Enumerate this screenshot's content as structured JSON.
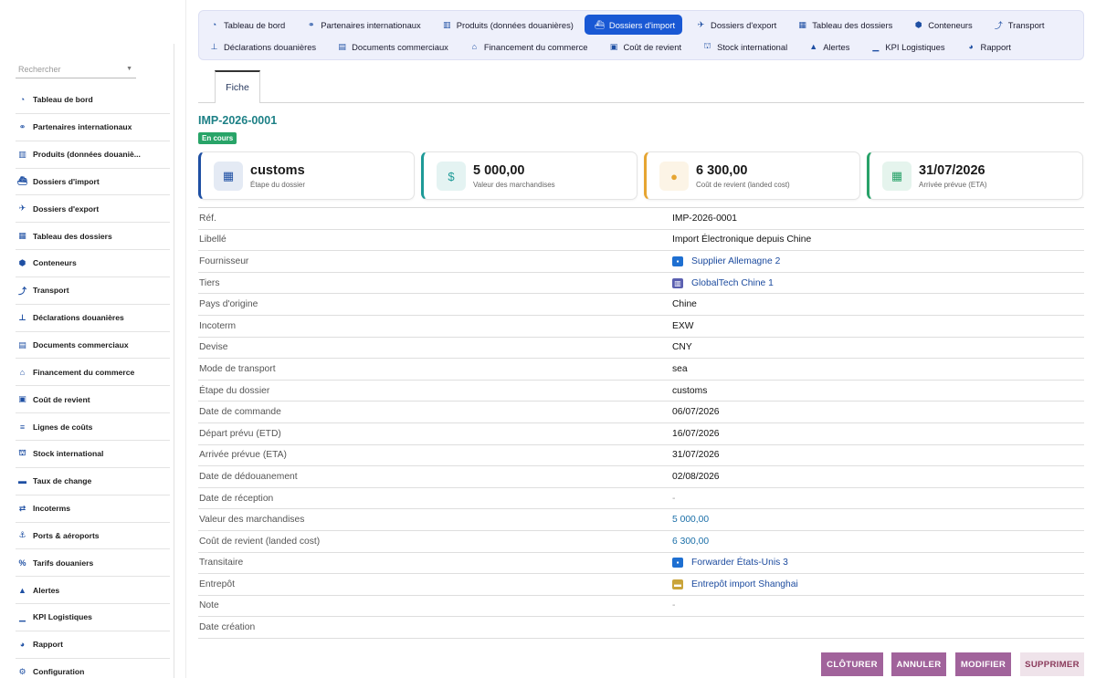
{
  "sidebar": {
    "search_placeholder": "Rechercher",
    "items": [
      {
        "label": "Tableau de bord",
        "icon": "dashboard-icon"
      },
      {
        "label": "Partenaires internationaux",
        "icon": "handshake-icon"
      },
      {
        "label": "Produits (données douaniè...",
        "icon": "barcode-icon"
      },
      {
        "label": "Dossiers d'import",
        "icon": "ship-icon"
      },
      {
        "label": "Dossiers d'export",
        "icon": "plane-icon"
      },
      {
        "label": "Tableau des dossiers",
        "icon": "table-icon"
      },
      {
        "label": "Conteneurs",
        "icon": "box-icon"
      },
      {
        "label": "Transport",
        "icon": "route-icon"
      },
      {
        "label": "Déclarations douanières",
        "icon": "stamp-icon"
      },
      {
        "label": "Documents commerciaux",
        "icon": "document-icon"
      },
      {
        "label": "Financement du commerce",
        "icon": "bank-icon"
      },
      {
        "label": "Coût de revient",
        "icon": "calculator-icon"
      },
      {
        "label": "Lignes de coûts",
        "icon": "list-icon"
      },
      {
        "label": "Stock international",
        "icon": "warehouse-icon"
      },
      {
        "label": "Taux de change",
        "icon": "money-icon"
      },
      {
        "label": "Incoterms",
        "icon": "exchange-icon"
      },
      {
        "label": "Ports & aéroports",
        "icon": "anchor-icon"
      },
      {
        "label": "Tarifs douaniers",
        "icon": "percent-icon"
      },
      {
        "label": "Alertes",
        "icon": "warning-icon"
      },
      {
        "label": "KPI Logistiques",
        "icon": "chart-icon"
      },
      {
        "label": "Rapport",
        "icon": "pie-chart-icon"
      },
      {
        "label": "Configuration",
        "icon": "gear-icon"
      }
    ]
  },
  "topnav": {
    "row1": [
      {
        "label": "Tableau de bord",
        "icon": "dashboard-icon",
        "active": false
      },
      {
        "label": "Partenaires internationaux",
        "icon": "handshake-icon",
        "active": false
      },
      {
        "label": "Produits (données douanières)",
        "icon": "barcode-icon",
        "active": false
      },
      {
        "label": "Dossiers d'import",
        "icon": "ship-icon",
        "active": true
      },
      {
        "label": "Dossiers d'export",
        "icon": "plane-icon",
        "active": false
      },
      {
        "label": "Tableau des dossiers",
        "icon": "table-icon",
        "active": false
      },
      {
        "label": "Conteneurs",
        "icon": "box-icon",
        "active": false
      },
      {
        "label": "Transport",
        "icon": "route-icon",
        "active": false
      }
    ],
    "row2": [
      {
        "label": "Déclarations douanières",
        "icon": "stamp-icon",
        "active": false
      },
      {
        "label": "Documents commerciaux",
        "icon": "document-icon",
        "active": false
      },
      {
        "label": "Financement du commerce",
        "icon": "bank-icon",
        "active": false
      },
      {
        "label": "Coût de revient",
        "icon": "calculator-icon",
        "active": false
      },
      {
        "label": "Stock international",
        "icon": "warehouse-icon",
        "active": false
      },
      {
        "label": "Alertes",
        "icon": "warning-icon",
        "active": false
      },
      {
        "label": "KPI Logistiques",
        "icon": "chart-icon",
        "active": false
      },
      {
        "label": "Rapport",
        "icon": "pie-chart-icon",
        "active": false
      }
    ]
  },
  "tabs": {
    "active": "Fiche"
  },
  "record": {
    "reference": "IMP-2026-0001",
    "status": "En cours",
    "status_color": "#28a468"
  },
  "cards": [
    {
      "value": "customs",
      "label": "Étape du dossier",
      "icon": "table-icon",
      "accent": "#1e4fa3"
    },
    {
      "value": "5 000,00",
      "label": "Valeur des marchandises",
      "icon": "dollar-file-icon",
      "accent": "#1d9a97"
    },
    {
      "value": "6 300,00",
      "label": "Coût de revient (landed cost)",
      "icon": "coins-icon",
      "accent": "#e6a532"
    },
    {
      "value": "31/07/2026",
      "label": "Arrivée prévue (ETA)",
      "icon": "calendar-icon",
      "accent": "#27a168"
    }
  ],
  "details": [
    {
      "key": "Réf.",
      "value": "IMP-2026-0001",
      "type": "text"
    },
    {
      "key": "Libellé",
      "value": "Import Électronique depuis Chine",
      "type": "text"
    },
    {
      "key": "Fournisseur",
      "value": "Supplier Allemagne 2",
      "type": "link",
      "icon": "company-icon"
    },
    {
      "key": "Tiers",
      "value": "GlobalTech Chine 1",
      "type": "link",
      "icon": "building-icon"
    },
    {
      "key": "Pays d'origine",
      "value": "Chine",
      "type": "text"
    },
    {
      "key": "Incoterm",
      "value": "EXW",
      "type": "text"
    },
    {
      "key": "Devise",
      "value": "CNY",
      "type": "text"
    },
    {
      "key": "Mode de transport",
      "value": "sea",
      "type": "text"
    },
    {
      "key": "Étape du dossier",
      "value": "customs",
      "type": "text"
    },
    {
      "key": "Date de commande",
      "value": "06/07/2026",
      "type": "text"
    },
    {
      "key": "Départ prévu (ETD)",
      "value": "16/07/2026",
      "type": "text"
    },
    {
      "key": "Arrivée prévue (ETA)",
      "value": "31/07/2026",
      "type": "text"
    },
    {
      "key": "Date de dédouanement",
      "value": "02/08/2026",
      "type": "text"
    },
    {
      "key": "Date de réception",
      "value": "-",
      "type": "muted"
    },
    {
      "key": "Valeur des marchandises",
      "value": "5 000,00",
      "type": "num"
    },
    {
      "key": "Coût de revient (landed cost)",
      "value": "6 300,00",
      "type": "num"
    },
    {
      "key": "Transitaire",
      "value": "Forwarder États-Unis 3",
      "type": "link",
      "icon": "company-icon"
    },
    {
      "key": "Entrepôt",
      "value": "Entrepôt import Shanghai",
      "type": "link",
      "icon": "warehouse-box-icon"
    },
    {
      "key": "Note",
      "value": "-",
      "type": "muted"
    },
    {
      "key": "Date création",
      "value": "",
      "type": "text"
    }
  ],
  "actions": {
    "close_label": "CLÔTURER",
    "cancel_label": "ANNULER",
    "edit_label": "MODIFIER",
    "delete_label": "SUPPRIMER"
  }
}
